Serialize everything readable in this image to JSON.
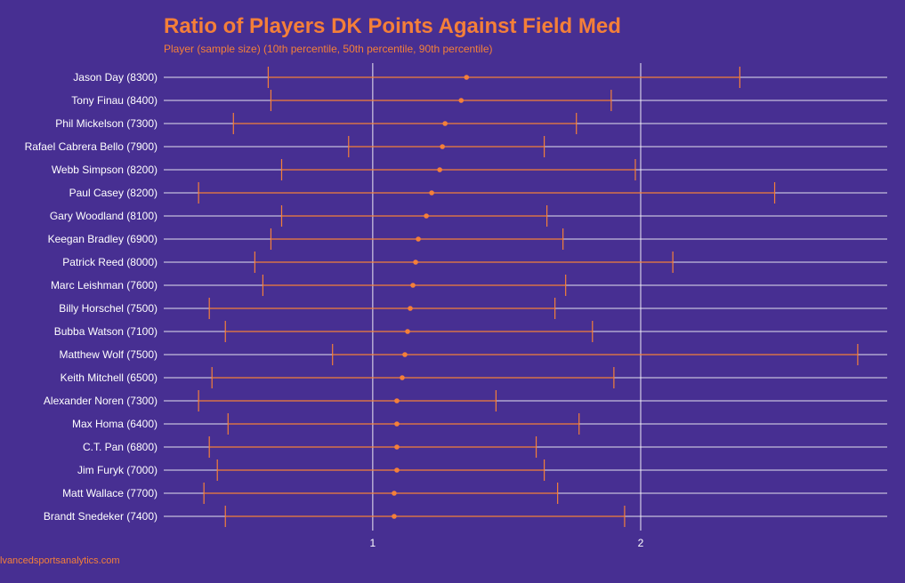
{
  "colors": {
    "background": "#472f92",
    "accent": "#f47f39",
    "grid": "#ffffff",
    "label": "#ffffff"
  },
  "chart_data": {
    "type": "errorbar",
    "title": "Ratio of Players DK Points Against Field Med",
    "subtitle": "Player (sample size) (10th percentile, 50th percentile, 90th percentile)",
    "caption": "lvancedsportsanalytics.com",
    "xlim": [
      0.22,
      2.92
    ],
    "xticks": [
      1,
      2
    ],
    "xtick_labels": [
      "1",
      "2"
    ],
    "grid": true,
    "players": [
      {
        "label": "Jason Day (8300)",
        "p10": 0.61,
        "p50": 1.35,
        "p90": 2.37
      },
      {
        "label": "Tony Finau (8400)",
        "p10": 0.62,
        "p50": 1.33,
        "p90": 1.89
      },
      {
        "label": "Phil Mickelson (7300)",
        "p10": 0.48,
        "p50": 1.27,
        "p90": 1.76
      },
      {
        "label": "Rafael Cabrera Bello (7900)",
        "p10": 0.91,
        "p50": 1.26,
        "p90": 1.64
      },
      {
        "label": "Webb Simpson (8200)",
        "p10": 0.66,
        "p50": 1.25,
        "p90": 1.98
      },
      {
        "label": "Paul Casey (8200)",
        "p10": 0.35,
        "p50": 1.22,
        "p90": 2.5
      },
      {
        "label": "Gary Woodland (8100)",
        "p10": 0.66,
        "p50": 1.2,
        "p90": 1.65
      },
      {
        "label": "Keegan Bradley (6900)",
        "p10": 0.62,
        "p50": 1.17,
        "p90": 1.71
      },
      {
        "label": "Patrick Reed (8000)",
        "p10": 0.56,
        "p50": 1.16,
        "p90": 2.12
      },
      {
        "label": "Marc Leishman (7600)",
        "p10": 0.59,
        "p50": 1.15,
        "p90": 1.72
      },
      {
        "label": "Billy Horschel (7500)",
        "p10": 0.39,
        "p50": 1.14,
        "p90": 1.68
      },
      {
        "label": "Bubba Watson (7100)",
        "p10": 0.45,
        "p50": 1.13,
        "p90": 1.82
      },
      {
        "label": "Matthew Wolf (7500)",
        "p10": 0.85,
        "p50": 1.12,
        "p90": 2.81
      },
      {
        "label": "Keith Mitchell (6500)",
        "p10": 0.4,
        "p50": 1.11,
        "p90": 1.9
      },
      {
        "label": "Alexander Noren (7300)",
        "p10": 0.35,
        "p50": 1.09,
        "p90": 1.46
      },
      {
        "label": "Max Homa (6400)",
        "p10": 0.46,
        "p50": 1.09,
        "p90": 1.77
      },
      {
        "label": "C.T. Pan (6800)",
        "p10": 0.39,
        "p50": 1.09,
        "p90": 1.61
      },
      {
        "label": "Jim Furyk (7000)",
        "p10": 0.42,
        "p50": 1.09,
        "p90": 1.64
      },
      {
        "label": "Matt Wallace (7700)",
        "p10": 0.37,
        "p50": 1.08,
        "p90": 1.69
      },
      {
        "label": "Brandt Snedeker (7400)",
        "p10": 0.45,
        "p50": 1.08,
        "p90": 1.94
      }
    ]
  }
}
